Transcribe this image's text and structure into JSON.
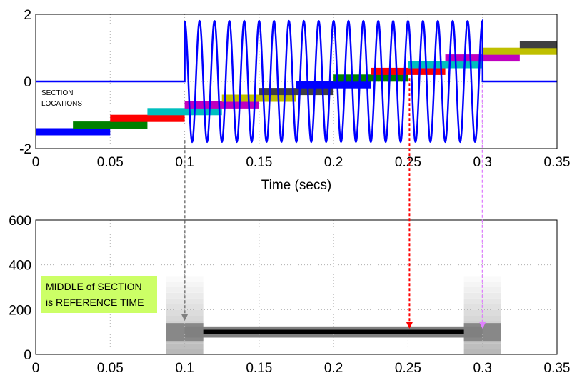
{
  "chart_data": [
    {
      "type": "line",
      "title": "",
      "xlabel": "Time (secs)",
      "ylabel": "",
      "xlim": [
        0,
        0.35
      ],
      "ylim": [
        -2,
        2
      ],
      "xticks": [
        0,
        0.05,
        0.1,
        0.15,
        0.2,
        0.25,
        0.3,
        0.35
      ],
      "xtick_labels": [
        "0",
        "0.05",
        "0.1",
        "0.15",
        "0.2",
        "0.25",
        "0.3",
        "0.35"
      ],
      "yticks": [
        -2,
        0,
        2
      ],
      "ytick_labels": [
        "-2",
        "0",
        "2"
      ],
      "grid": true,
      "series": [
        {
          "signal": "burst sinusoid",
          "color": "#0000ff",
          "amplitude": 1.8,
          "frequency_hz": 100,
          "burst_start": 0.1,
          "burst_end": 0.3,
          "baseline": 0
        }
      ],
      "annotation": "SECTION LOCATIONS",
      "sections": [
        {
          "start": 0.0,
          "end": 0.05,
          "level": -1.5,
          "color": "#0000ff"
        },
        {
          "start": 0.025,
          "end": 0.075,
          "level": -1.3,
          "color": "#008000"
        },
        {
          "start": 0.05,
          "end": 0.1,
          "level": -1.1,
          "color": "#ff0000"
        },
        {
          "start": 0.075,
          "end": 0.125,
          "level": -0.9,
          "color": "#00bfbf"
        },
        {
          "start": 0.1,
          "end": 0.15,
          "level": -0.7,
          "color": "#bf00bf"
        },
        {
          "start": 0.125,
          "end": 0.175,
          "level": -0.5,
          "color": "#bfbf00"
        },
        {
          "start": 0.15,
          "end": 0.2,
          "level": -0.3,
          "color": "#404040"
        },
        {
          "start": 0.175,
          "end": 0.225,
          "level": -0.1,
          "color": "#0000ff"
        },
        {
          "start": 0.2,
          "end": 0.25,
          "level": 0.1,
          "color": "#008000"
        },
        {
          "start": 0.225,
          "end": 0.275,
          "level": 0.3,
          "color": "#ff0000"
        },
        {
          "start": 0.25,
          "end": 0.3,
          "level": 0.5,
          "color": "#00bfbf"
        },
        {
          "start": 0.275,
          "end": 0.325,
          "level": 0.7,
          "color": "#bf00bf"
        },
        {
          "start": 0.3,
          "end": 0.35,
          "level": 0.9,
          "color": "#bfbf00"
        },
        {
          "start": 0.325,
          "end": 0.35,
          "level": 1.1,
          "color": "#404040"
        }
      ]
    },
    {
      "type": "heatmap",
      "title": "",
      "xlabel": "",
      "ylabel": "",
      "xlim": [
        0,
        0.35
      ],
      "ylim": [
        0,
        600
      ],
      "xticks": [
        0,
        0.05,
        0.1,
        0.15,
        0.2,
        0.25,
        0.3,
        0.35
      ],
      "xtick_labels": [
        "0",
        "0.05",
        "0.1",
        "0.15",
        "0.2",
        "0.25",
        "0.3",
        "0.35"
      ],
      "yticks": [
        0,
        200,
        400,
        600
      ],
      "ytick_labels": [
        "0",
        "200",
        "400",
        "600"
      ],
      "grid": true,
      "main_band": {
        "x_start": 0.1,
        "x_end": 0.3,
        "y_center": 100,
        "y_halfwidth": 10
      },
      "edge_smears": [
        {
          "x_start": 0.0875,
          "x_end": 0.1125,
          "y_max": 350
        },
        {
          "x_start": 0.2875,
          "x_end": 0.3125,
          "y_max": 350
        }
      ],
      "note": "MIDDLE of SECTION is REFERENCE TIME",
      "note_bg": "#ccff66"
    }
  ],
  "arrows": [
    {
      "x": 0.1,
      "color": "#808080"
    },
    {
      "x": 0.25,
      "color": "#ff0000"
    },
    {
      "x": 0.3,
      "color": "#e080ff"
    }
  ]
}
